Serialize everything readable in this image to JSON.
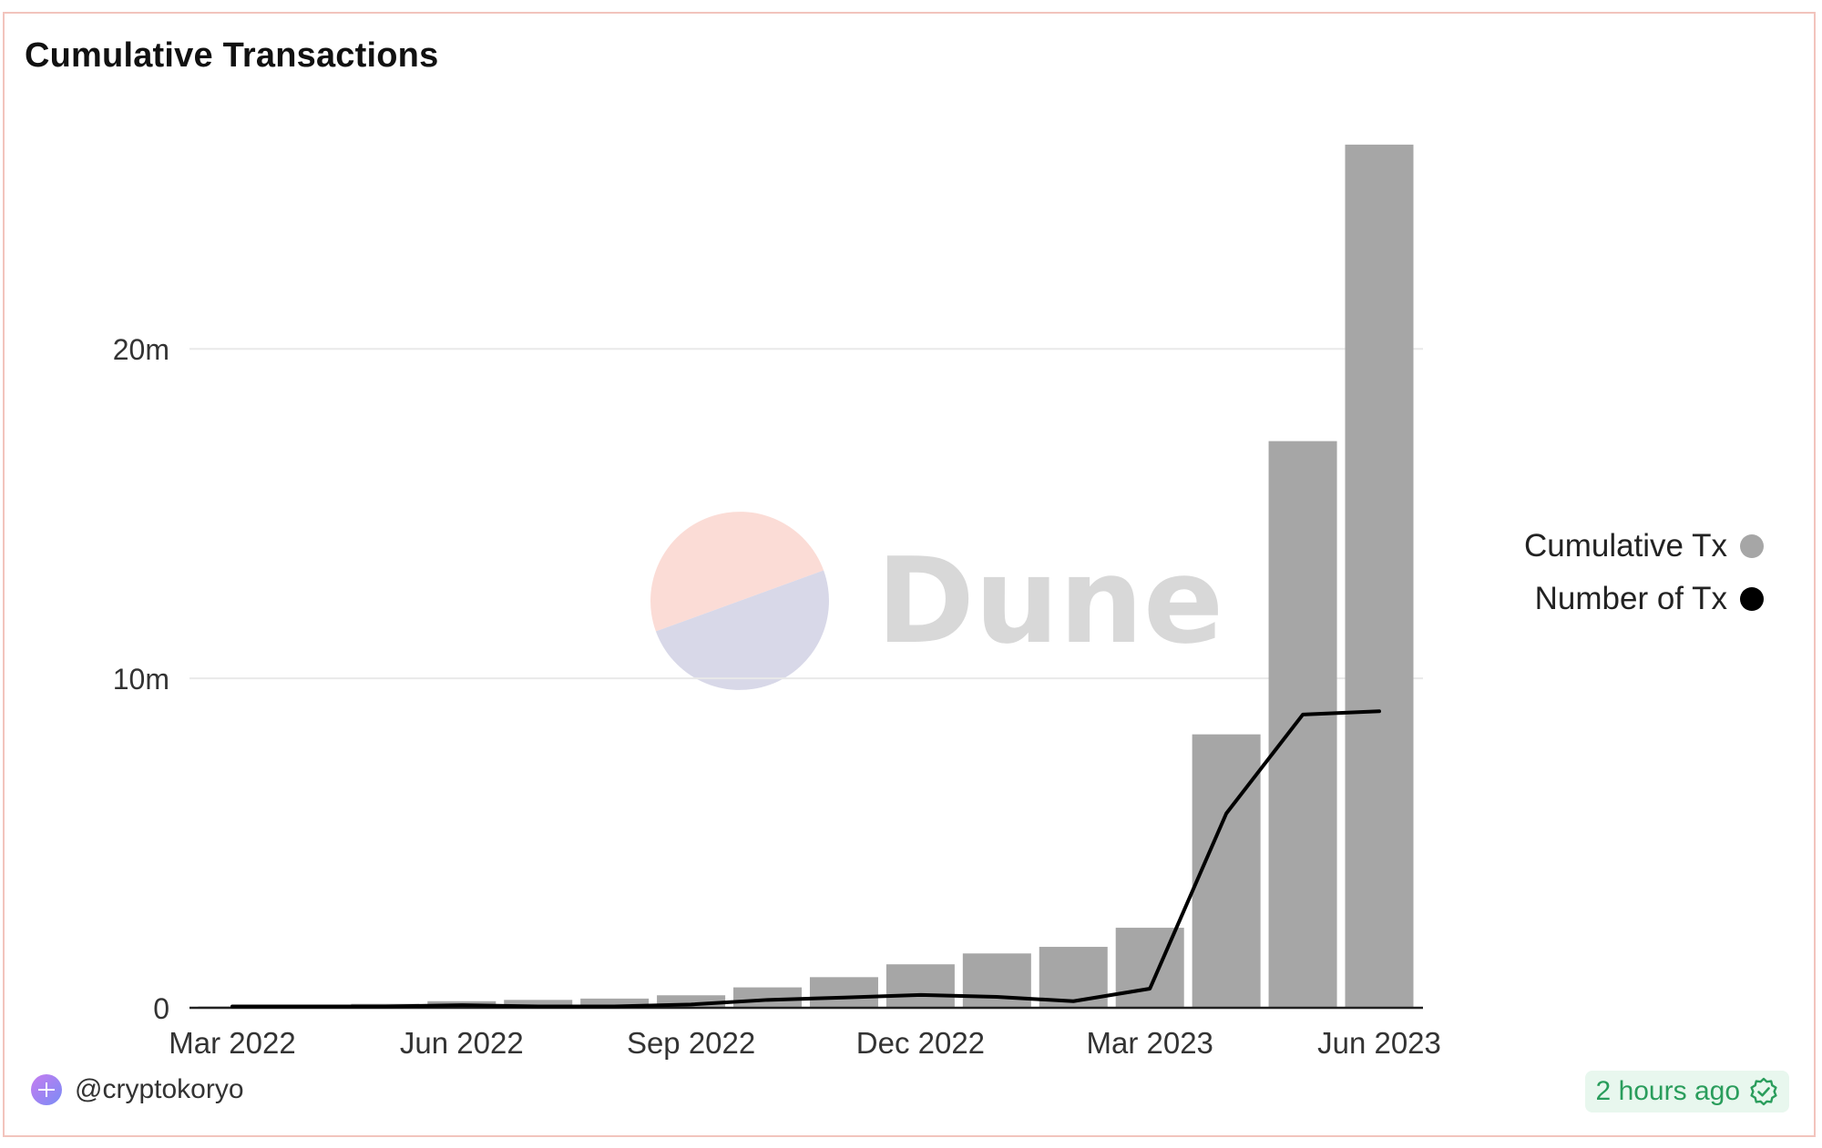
{
  "title": "Cumulative Transactions",
  "watermark": {
    "text": "Dune",
    "colors": {
      "top": "#fbdcd6",
      "bottom": "#d8d8e8",
      "text": "#d8d8d8"
    }
  },
  "footer": {
    "user": "@cryptokoryo",
    "updated": "2 hours ago",
    "avatar_icon": "avatar-icon",
    "status_icon": "verified-check-icon"
  },
  "colors": {
    "bar": "#a6a6a6",
    "line": "#000000",
    "grid": "#e9e9e9",
    "axis_text": "#333333",
    "badge_text": "#2a9d5c",
    "badge_bg": "#e8f7ee",
    "border": "#f2c4bd"
  },
  "chart_data": {
    "type": "bar",
    "title": "Cumulative Transactions",
    "xlabel": "",
    "ylabel": "",
    "categories": [
      "Mar 2022",
      "Apr 2022",
      "May 2022",
      "Jun 2022",
      "Jul 2022",
      "Aug 2022",
      "Sep 2022",
      "Oct 2022",
      "Nov 2022",
      "Dec 2022",
      "Jan 2023",
      "Feb 2023",
      "Mar 2023",
      "Apr 2023",
      "May 2023",
      "Jun 2023"
    ],
    "x_tick_labels": [
      "Mar 2022",
      "Jun 2022",
      "Sep 2022",
      "Dec 2022",
      "Mar 2023",
      "Jun 2023"
    ],
    "y_tick_labels": [
      "0",
      "10m",
      "20m"
    ],
    "y_ticks": [
      0,
      10000000,
      20000000
    ],
    "ylim": [
      0,
      26500000
    ],
    "grid": true,
    "legend_position": "right",
    "series": [
      {
        "name": "Cumulative Tx",
        "type": "bar",
        "color": "#a6a6a6",
        "values": [
          40000,
          80000,
          120000,
          200000,
          240000,
          280000,
          380000,
          620000,
          930000,
          1320000,
          1650000,
          1850000,
          2430000,
          8300000,
          17200000,
          26200000
        ]
      },
      {
        "name": "Number of Tx",
        "type": "line",
        "color": "#000000",
        "values": [
          40000,
          40000,
          40000,
          80000,
          40000,
          40000,
          100000,
          240000,
          310000,
          390000,
          330000,
          200000,
          580000,
          5900000,
          8900000,
          9000000
        ]
      }
    ]
  }
}
